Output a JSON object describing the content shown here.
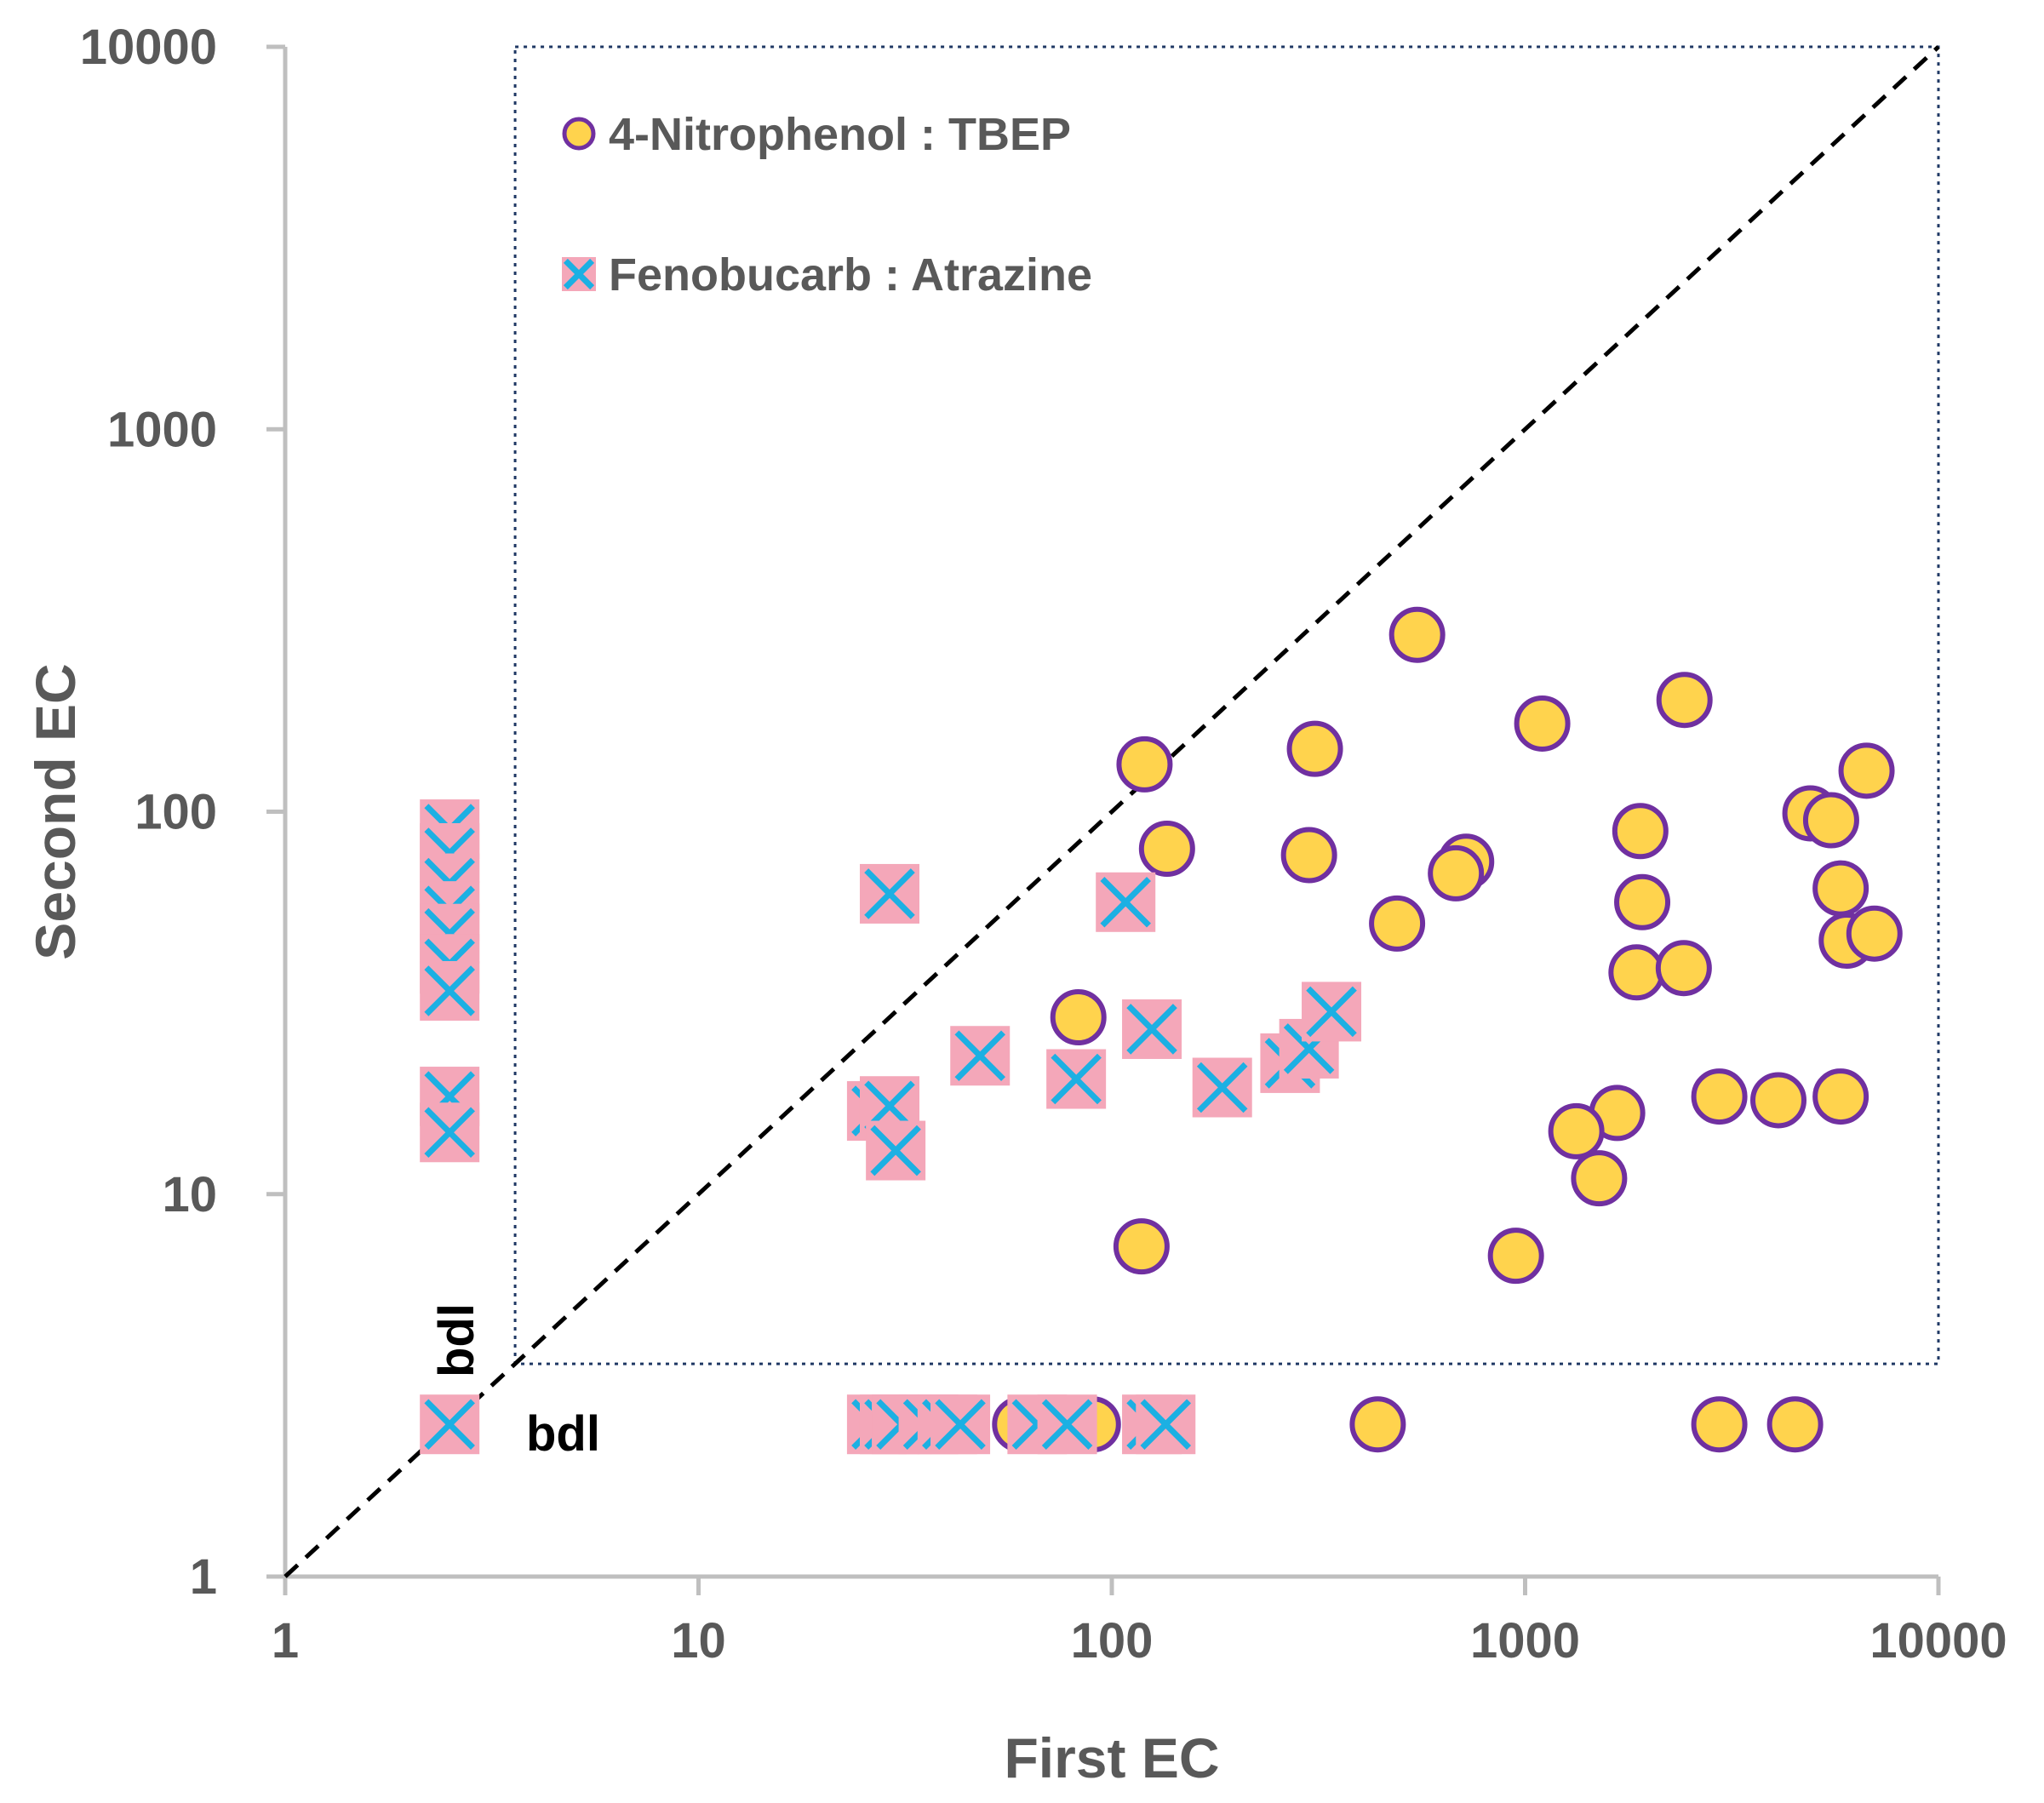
{
  "chart_data": {
    "type": "scatter",
    "xlabel": "First EC",
    "ylabel": "Second EC",
    "x_scale": "log",
    "y_scale": "log",
    "xlim": [
      1,
      10000
    ],
    "ylim": [
      1,
      10000
    ],
    "x_ticks": [
      "1",
      "10",
      "100",
      "1000",
      "10000"
    ],
    "y_ticks": [
      "1",
      "10",
      "100",
      "1000",
      "10000"
    ],
    "grid": false,
    "legend_position": "top-left",
    "reference_line": {
      "style": "dashed",
      "color": "#000000",
      "from": [
        1,
        1
      ],
      "to": [
        10000,
        10000
      ]
    },
    "bdl_labels": {
      "x": "bdl",
      "y": "bdl"
    },
    "bdl_value": 2.5,
    "detection_limit": 3.6,
    "series": [
      {
        "name": "4-Nitrophenol : TBEP",
        "marker": "circle",
        "fill": "#FFD34D",
        "stroke": "#7030A0",
        "points": [
          [
            548,
            290
          ],
          [
            2430,
            196
          ],
          [
            1100,
            170
          ],
          [
            310,
            146
          ],
          [
            6700,
            128
          ],
          [
            120,
            133
          ],
          [
            4900,
            99
          ],
          [
            5500,
            95
          ],
          [
            1900,
            89
          ],
          [
            136,
            80
          ],
          [
            300,
            77
          ],
          [
            720,
            74
          ],
          [
            680,
            69
          ],
          [
            5800,
            63
          ],
          [
            1920,
            58
          ],
          [
            490,
            51
          ],
          [
            6000,
            46
          ],
          [
            7000,
            48
          ],
          [
            1860,
            38
          ],
          [
            2420,
            39
          ],
          [
            83,
            29
          ],
          [
            2950,
            18
          ],
          [
            4100,
            17.6
          ],
          [
            5800,
            18
          ],
          [
            1670,
            16.3
          ],
          [
            1330,
            14.6
          ],
          [
            1510,
            11
          ],
          [
            118,
            7.3
          ],
          [
            950,
            6.9
          ],
          [
            440,
            2.5
          ],
          [
            2950,
            2.5
          ],
          [
            4500,
            2.5
          ],
          [
            60,
            2.5
          ],
          [
            75,
            2.5
          ],
          [
            90,
            2.5
          ],
          [
            135,
            2.5
          ]
        ]
      },
      {
        "name": "Fenobucarb : Atrazine",
        "marker": "x-square",
        "fill": "#F4A7B9",
        "stroke": "#1CB0E3",
        "points": [
          [
            2.5,
            90
          ],
          [
            2.5,
            78
          ],
          [
            2.5,
            65
          ],
          [
            2.5,
            55
          ],
          [
            2.5,
            48
          ],
          [
            2.5,
            40
          ],
          [
            2.5,
            34
          ],
          [
            2.5,
            18
          ],
          [
            2.5,
            14.5
          ],
          [
            29,
            61
          ],
          [
            108,
            58
          ],
          [
            48,
            23
          ],
          [
            125,
            27
          ],
          [
            82,
            20
          ],
          [
            185,
            19
          ],
          [
            270,
            22
          ],
          [
            300,
            24
          ],
          [
            340,
            30
          ],
          [
            27,
            16.5
          ],
          [
            29,
            17
          ],
          [
            30,
            13
          ],
          [
            2.5,
            2.5
          ],
          [
            27,
            2.5
          ],
          [
            29,
            2.5
          ],
          [
            31,
            2.5
          ],
          [
            36,
            2.5
          ],
          [
            40,
            2.5
          ],
          [
            43,
            2.5
          ],
          [
            66,
            2.5
          ],
          [
            78,
            2.5
          ],
          [
            125,
            2.5
          ],
          [
            135,
            2.5
          ]
        ]
      }
    ]
  }
}
